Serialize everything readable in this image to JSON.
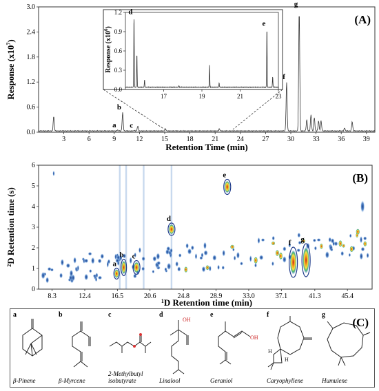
{
  "panel_a": {
    "label": "(A)",
    "ylabel": "Response (x10",
    "ylabel_exp": "7",
    "ylabel_close": ")",
    "xlabel": "Retention Time (min)",
    "yticks": [
      "0.0",
      "0.6",
      "1.2",
      "1.8",
      "2.4",
      "3.0"
    ],
    "xticks": [
      "3",
      "6",
      "9",
      "12",
      "15",
      "18",
      "21",
      "24",
      "27",
      "30",
      "33",
      "36",
      "39"
    ]
  },
  "inset": {
    "ylabel": "Response (x10",
    "ylabel_exp": "6",
    "ylabel_close": ")",
    "yticks": [
      "0.0",
      "0.3",
      "0.6",
      "0.9",
      "1.2"
    ],
    "xticks": [
      "17",
      "19",
      "21",
      "23"
    ],
    "peaks": [
      "d",
      "e"
    ]
  },
  "panel_b": {
    "label": "(B)",
    "ylabel_pre": "2",
    "ylabel": "D Retention time (s)",
    "xlabel_pre": "1",
    "xlabel": "D Retention time (min)",
    "yticks": [
      "0",
      "1",
      "2",
      "3",
      "4",
      "5",
      "6"
    ],
    "xticks": [
      "8.3",
      "12.4",
      "16.5",
      "20.6",
      "24.8",
      "28.9",
      "33.0",
      "37.1",
      "41.3",
      "45.4"
    ]
  },
  "panel_c": {
    "label": "(C)",
    "compounds": [
      {
        "letter": "a",
        "name": "β-Pinene"
      },
      {
        "letter": "b",
        "name": "β-Myrcene"
      },
      {
        "letter": "c",
        "name": "2-Methylbutyl isobutyrate"
      },
      {
        "letter": "d",
        "name": "Linalool"
      },
      {
        "letter": "e",
        "name": "Geraniol"
      },
      {
        "letter": "f",
        "name": "Caryophyllene"
      },
      {
        "letter": "g",
        "name": "Humulene"
      }
    ],
    "oh_label": "OH",
    "h_label": "H"
  },
  "chart_data": [
    {
      "type": "line",
      "xlabel": "Retention Time (min)",
      "ylabel": "Response (x10^7)",
      "xlim": [
        0,
        40
      ],
      "ylim": [
        0,
        3.0
      ],
      "peaks": [
        {
          "x": 1.8,
          "y": 0.38
        },
        {
          "x": 9.4,
          "y": 0.05,
          "label": "a"
        },
        {
          "x": 10.0,
          "y": 0.48,
          "label": "b"
        },
        {
          "x": 11.4,
          "y": 0.04,
          "label": "c"
        },
        {
          "x": 11.8,
          "y": 0.15
        },
        {
          "x": 15.1,
          "y": 0.08
        },
        {
          "x": 21.5,
          "y": 0.08
        },
        {
          "x": 29.5,
          "y": 1.2,
          "label": "f"
        },
        {
          "x": 31.0,
          "y": 2.95,
          "label": "g"
        },
        {
          "x": 31.9,
          "y": 0.3
        },
        {
          "x": 32.4,
          "y": 0.42
        },
        {
          "x": 32.8,
          "y": 0.35
        },
        {
          "x": 33.3,
          "y": 0.27
        },
        {
          "x": 33.6,
          "y": 0.28
        },
        {
          "x": 36.4,
          "y": 0.1
        },
        {
          "x": 37.3,
          "y": 0.25
        }
      ]
    },
    {
      "type": "line",
      "xlabel": "",
      "ylabel": "Response (x10^6)",
      "xlim": [
        15,
        23
      ],
      "ylim": [
        0,
        1.2
      ],
      "peaks": [
        {
          "x": 15.45,
          "y": 1.13,
          "label": "d"
        },
        {
          "x": 15.6,
          "y": 0.55
        },
        {
          "x": 16.0,
          "y": 0.15
        },
        {
          "x": 17.8,
          "y": 0.06
        },
        {
          "x": 19.4,
          "y": 0.38
        },
        {
          "x": 19.9,
          "y": 0.1
        },
        {
          "x": 22.4,
          "y": 0.95,
          "label": "e"
        },
        {
          "x": 22.7,
          "y": 0.2
        }
      ]
    },
    {
      "type": "heatmap",
      "xlabel": "1D Retention time (min)",
      "ylabel": "2D Retention time (s)",
      "xlim": [
        6.6,
        48.5
      ],
      "ylim": [
        0,
        6
      ],
      "spots": [
        {
          "x": 16.4,
          "y": 0.75,
          "label": "a"
        },
        {
          "x": 17.3,
          "y": 1.05,
          "label": "b"
        },
        {
          "x": 18.9,
          "y": 1.05,
          "label": "c"
        },
        {
          "x": 23.3,
          "y": 2.9,
          "label": "d"
        },
        {
          "x": 30.3,
          "y": 4.95,
          "label": "e"
        },
        {
          "x": 38.6,
          "y": 1.3,
          "label": "f"
        },
        {
          "x": 40.2,
          "y": 1.4,
          "label": "g"
        }
      ]
    }
  ]
}
